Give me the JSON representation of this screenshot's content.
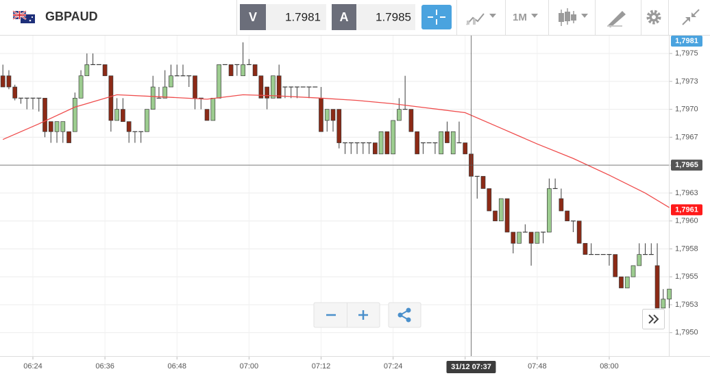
{
  "toolbar": {
    "symbol": "GBPAUD",
    "sell_label": "V",
    "sell_price": "1.7981",
    "buy_label": "A",
    "buy_price": "1.7985",
    "timeframe": "1M"
  },
  "chart_data": {
    "type": "candlestick",
    "x": [
      "06:19",
      "06:20",
      "06:21",
      "06:22",
      "06:23",
      "06:24",
      "06:25",
      "06:26",
      "06:27",
      "06:28",
      "06:29",
      "06:30",
      "06:31",
      "06:32",
      "06:33",
      "06:34",
      "06:35",
      "06:36",
      "06:37",
      "06:38",
      "06:39",
      "06:40",
      "06:41",
      "06:42",
      "06:43",
      "06:44",
      "06:45",
      "06:46",
      "06:47",
      "06:48",
      "06:49",
      "06:50",
      "06:51",
      "06:52",
      "06:53",
      "06:54",
      "06:55",
      "06:56",
      "06:57",
      "06:58",
      "06:59",
      "07:00",
      "07:01",
      "07:02",
      "07:03",
      "07:04",
      "07:05",
      "07:06",
      "07:07",
      "07:08",
      "07:09",
      "07:10",
      "07:11",
      "07:12",
      "07:13",
      "07:14",
      "07:15",
      "07:16",
      "07:17",
      "07:18",
      "07:19",
      "07:20",
      "07:21",
      "07:22",
      "07:23",
      "07:24",
      "07:25",
      "07:26",
      "07:27",
      "07:28",
      "07:29",
      "07:30",
      "07:31",
      "07:32",
      "07:33",
      "07:34",
      "07:35",
      "07:36",
      "07:37",
      "07:38",
      "07:39",
      "07:40",
      "07:41",
      "07:42",
      "07:43",
      "07:44",
      "07:45",
      "07:46",
      "07:47",
      "07:48",
      "07:49",
      "07:50",
      "07:51",
      "07:52",
      "07:53",
      "07:54",
      "07:55",
      "07:56",
      "07:57",
      "07:58",
      "07:59",
      "08:00",
      "08:01",
      "08:02",
      "08:03",
      "08:04",
      "08:05",
      "08:06",
      "08:07",
      "08:08",
      "08:09",
      "08:10"
    ],
    "open": [
      1.7973,
      1.7973,
      1.7972,
      1.7971,
      1.7971,
      1.7971,
      1.7971,
      1.7971,
      1.79689,
      1.7968,
      1.7968,
      1.7968,
      1.7968,
      1.7971,
      1.7973,
      1.7974,
      1.7974,
      1.7974,
      1.7973,
      1.7969,
      1.797,
      1.79689,
      1.7968,
      1.7968,
      1.7968,
      1.797,
      1.7971,
      1.7971,
      1.7972,
      1.7973,
      1.7973,
      1.7973,
      1.7973,
      1.7971,
      1.797,
      1.7969,
      1.7971,
      1.7974,
      1.7974,
      1.7974,
      1.7973,
      1.7974,
      1.7974,
      1.7973,
      1.7972,
      1.7971,
      1.7973,
      1.7972,
      1.7972,
      1.7972,
      1.7972,
      1.7972,
      1.7972,
      1.7971,
      1.7969,
      1.797,
      1.797,
      1.7967,
      1.7967,
      1.7967,
      1.7967,
      1.7967,
      1.7967,
      1.7966,
      1.7968,
      1.7966,
      1.7969,
      1.797,
      1.797,
      1.7968,
      1.7967,
      1.7967,
      1.7967,
      1.7966,
      1.7968,
      1.7966,
      1.7967,
      1.7967,
      1.7966,
      1.7964,
      1.7964,
      1.79629,
      1.79609,
      1.796,
      1.7962,
      1.7959,
      1.7958,
      1.7959,
      1.7959,
      1.7958,
      1.7959,
      1.7959,
      1.79629,
      1.7962,
      1.79609,
      1.796,
      1.796,
      1.7958,
      1.7957,
      1.7957,
      1.7957,
      1.7957,
      1.7957,
      1.7955,
      1.7954,
      1.7955,
      1.7956,
      1.7957,
      1.7957,
      1.7956,
      1.79522,
      1.7953
    ],
    "high": [
      1.7974,
      1.79735,
      1.79722,
      1.7971,
      1.7971,
      1.7971,
      1.7971,
      1.7971,
      1.79689,
      1.79689,
      1.79689,
      1.7968,
      1.79715,
      1.79735,
      1.7975,
      1.7975,
      1.7974,
      1.7974,
      1.7973,
      1.7971,
      1.7971,
      1.79689,
      1.7968,
      1.7968,
      1.797,
      1.7973,
      1.7972,
      1.79735,
      1.7974,
      1.7974,
      1.7974,
      1.7973,
      1.7973,
      1.7971,
      1.797,
      1.7971,
      1.7974,
      1.7974,
      1.7974,
      1.7974,
      1.7976,
      1.79745,
      1.7974,
      1.7973,
      1.7972,
      1.7973,
      1.7974,
      1.7972,
      1.7972,
      1.7972,
      1.7972,
      1.7972,
      1.7972,
      1.7972,
      1.797,
      1.797,
      1.797,
      1.7967,
      1.7967,
      1.7967,
      1.7967,
      1.7967,
      1.7967,
      1.7968,
      1.7968,
      1.7969,
      1.7971,
      1.7973,
      1.797,
      1.7968,
      1.7967,
      1.7967,
      1.7967,
      1.7968,
      1.79689,
      1.7968,
      1.79689,
      1.7967,
      1.7966,
      1.7964,
      1.7964,
      1.79629,
      1.79609,
      1.7962,
      1.7962,
      1.7959,
      1.7959,
      1.79597,
      1.7959,
      1.7959,
      1.7959,
      1.79638,
      1.79638,
      1.79629,
      1.79609,
      1.796,
      1.796,
      1.7958,
      1.7958,
      1.7957,
      1.7957,
      1.7957,
      1.7957,
      1.7955,
      1.7955,
      1.7956,
      1.7958,
      1.7958,
      1.7958,
      1.7958,
      1.79539,
      1.79539
    ],
    "low": [
      1.7972,
      1.79718,
      1.79708,
      1.79705,
      1.797,
      1.797,
      1.79698,
      1.79675,
      1.7967,
      1.7967,
      1.7967,
      1.7967,
      1.7968,
      1.7971,
      1.7973,
      1.7974,
      1.7974,
      1.7973,
      1.7968,
      1.7969,
      1.79689,
      1.7967,
      1.7967,
      1.7967,
      1.7968,
      1.797,
      1.7971,
      1.7971,
      1.7972,
      1.7973,
      1.7973,
      1.7972,
      1.797,
      1.797,
      1.7969,
      1.7969,
      1.7971,
      1.7974,
      1.7973,
      1.7973,
      1.7973,
      1.7974,
      1.7973,
      1.7971,
      1.797,
      1.7971,
      1.7971,
      1.7971,
      1.7971,
      1.7971,
      1.7972,
      1.7971,
      1.7972,
      1.7968,
      1.7968,
      1.7968,
      1.79665,
      1.7966,
      1.7966,
      1.7966,
      1.7966,
      1.7966,
      1.7966,
      1.7966,
      1.7966,
      1.7966,
      1.7969,
      1.797,
      1.7968,
      1.7966,
      1.7966,
      1.7967,
      1.7966,
      1.7966,
      1.7967,
      1.7966,
      1.7967,
      1.7966,
      1.7964,
      1.7962,
      1.79629,
      1.79609,
      1.796,
      1.796,
      1.7959,
      1.79571,
      1.7958,
      1.7959,
      1.7956,
      1.7958,
      1.7958,
      1.7959,
      1.79629,
      1.79609,
      1.796,
      1.7959,
      1.7958,
      1.7957,
      1.7957,
      1.7957,
      1.7957,
      1.7956,
      1.7955,
      1.7954,
      1.7954,
      1.7955,
      1.7956,
      1.7957,
      1.7957,
      1.79522,
      1.79522,
      1.79522
    ],
    "close": [
      1.7972,
      1.7972,
      1.7971,
      1.7971,
      1.7971,
      1.7971,
      1.7971,
      1.7968,
      1.7968,
      1.79689,
      1.79689,
      1.7967,
      1.7971,
      1.7973,
      1.7974,
      1.7974,
      1.7974,
      1.7973,
      1.7969,
      1.797,
      1.79689,
      1.7968,
      1.7968,
      1.7968,
      1.797,
      1.7972,
      1.7971,
      1.7972,
      1.7973,
      1.7973,
      1.7973,
      1.7973,
      1.7971,
      1.7971,
      1.7969,
      1.7971,
      1.7974,
      1.7974,
      1.7973,
      1.7974,
      1.7974,
      1.7974,
      1.7973,
      1.7971,
      1.7971,
      1.7973,
      1.7971,
      1.7972,
      1.7972,
      1.7972,
      1.7972,
      1.7972,
      1.7972,
      1.7968,
      1.797,
      1.7969,
      1.7967,
      1.7967,
      1.7967,
      1.7967,
      1.7967,
      1.7967,
      1.7966,
      1.7968,
      1.7966,
      1.7969,
      1.797,
      1.797,
      1.7968,
      1.7966,
      1.7967,
      1.7967,
      1.7967,
      1.7968,
      1.7967,
      1.7968,
      1.7967,
      1.7966,
      1.7964,
      1.7964,
      1.79629,
      1.79609,
      1.796,
      1.7962,
      1.7959,
      1.7958,
      1.7959,
      1.7959,
      1.7958,
      1.7959,
      1.7959,
      1.79629,
      1.79629,
      1.79609,
      1.796,
      1.796,
      1.7958,
      1.7957,
      1.7957,
      1.7957,
      1.7957,
      1.7957,
      1.7955,
      1.7954,
      1.7955,
      1.7956,
      1.7957,
      1.7957,
      1.7957,
      1.79522,
      1.7953,
      1.79539
    ],
    "up_color": "#9ccc8f",
    "down_color": "#8c2a16",
    "doji_color": "#3a3a3a",
    "moving_average": {
      "color": "#ef4b4b",
      "x": [
        "06:19",
        "06:25",
        "06:31",
        "06:38",
        "06:46",
        "06:53",
        "06:59",
        "07:05",
        "07:12",
        "07:18",
        "07:24",
        "07:30",
        "07:36",
        "07:42",
        "07:48",
        "07:54",
        "08:00",
        "08:06",
        "08:10"
      ],
      "values": [
        1.79673,
        1.79687,
        1.79702,
        1.79713,
        1.79711,
        1.79709,
        1.79713,
        1.79712,
        1.7971,
        1.79708,
        1.79705,
        1.79701,
        1.79697,
        1.79683,
        1.79669,
        1.79656,
        1.79641,
        1.79625,
        1.79612
      ]
    },
    "ylim": [
      1.79479,
      1.79766
    ],
    "yticks": [
      {
        "value": 1.7975,
        "label": "1,7975"
      },
      {
        "value": 1.79725,
        "label": "1,7973"
      },
      {
        "value": 1.797,
        "label": "1,7970"
      },
      {
        "value": 1.79675,
        "label": "1,7967"
      },
      {
        "value": 1.7965,
        "label": "1,7965"
      },
      {
        "value": 1.79625,
        "label": "1,7963"
      },
      {
        "value": 1.796,
        "label": "1,7960"
      },
      {
        "value": 1.79575,
        "label": "1,7958"
      },
      {
        "value": 1.7955,
        "label": "1,7955"
      },
      {
        "value": 1.79525,
        "label": "1,7953"
      },
      {
        "value": 1.795,
        "label": "1,7950"
      }
    ],
    "xticks": [
      "06:24",
      "06:36",
      "06:48",
      "07:00",
      "07:12",
      "07:24",
      "07:36",
      "07:48",
      "08:00"
    ],
    "grid": true,
    "price_markers": [
      {
        "value": 1.7981,
        "label": "1,7981",
        "color": "#4aa3df"
      },
      {
        "value": 1.7961,
        "label": "1,7961",
        "color": "#ff1a1a"
      }
    ],
    "crosshair": {
      "x": "07:37",
      "x_label": "31/12 07:37",
      "value": 1.7965,
      "label": "1,7965",
      "color": "#555555"
    }
  }
}
